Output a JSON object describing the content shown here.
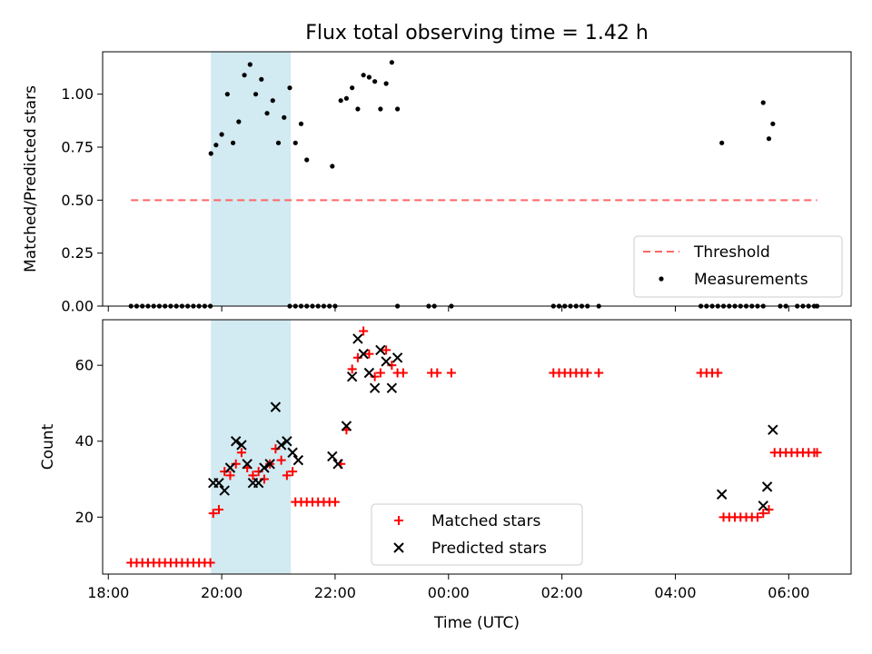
{
  "chart_data": {
    "title": "Flux total observing time = 1.42 h",
    "xlabel": "Time (UTC)",
    "x_unit": "hours since 00:00 UTC",
    "xlim": [
      -6.1,
      7.1
    ],
    "xticks": [
      {
        "value": -6,
        "label": "18:00"
      },
      {
        "value": -4,
        "label": "20:00"
      },
      {
        "value": -2,
        "label": "22:00"
      },
      {
        "value": 0,
        "label": "00:00"
      },
      {
        "value": 2,
        "label": "02:00"
      },
      {
        "value": 4,
        "label": "04:00"
      },
      {
        "value": 6,
        "label": "06:00"
      }
    ],
    "shaded_region": {
      "x": [
        -4.19,
        -2.78
      ],
      "color": "#add8e6"
    },
    "panels": [
      {
        "type": "scatter",
        "ylabel": "Matched/Predicted stars",
        "ylim": [
          0,
          1.2
        ],
        "yticks": [
          {
            "value": 0,
            "label": "0.00"
          },
          {
            "value": 0.25,
            "label": "0.25"
          },
          {
            "value": 0.5,
            "label": "0.50"
          },
          {
            "value": 0.75,
            "label": "0.75"
          },
          {
            "value": 1.0,
            "label": "1.00"
          }
        ],
        "legend": {
          "position": "lower-right",
          "threshold_label": "Threshold",
          "points_label": "Measurements"
        },
        "threshold": {
          "name": "Threshold",
          "value": 0.5,
          "x": [
            -5.6,
            6.5
          ],
          "color": "#ff6666"
        },
        "series": [
          {
            "name": "Measurements",
            "color": "#000000",
            "points": [
              [
                -5.6,
                0
              ],
              [
                -5.5,
                0
              ],
              [
                -5.4,
                0
              ],
              [
                -5.3,
                0
              ],
              [
                -5.2,
                0
              ],
              [
                -5.1,
                0
              ],
              [
                -5.0,
                0
              ],
              [
                -4.9,
                0
              ],
              [
                -4.8,
                0
              ],
              [
                -4.7,
                0
              ],
              [
                -4.6,
                0
              ],
              [
                -4.5,
                0
              ],
              [
                -4.4,
                0
              ],
              [
                -4.3,
                0
              ],
              [
                -4.2,
                0
              ],
              [
                -4.19,
                0.72
              ],
              [
                -4.1,
                0.76
              ],
              [
                -4.0,
                0.81
              ],
              [
                -3.9,
                1.0
              ],
              [
                -3.8,
                0.77
              ],
              [
                -3.7,
                0.87
              ],
              [
                -3.6,
                1.09
              ],
              [
                -3.5,
                1.14
              ],
              [
                -3.4,
                1.0
              ],
              [
                -3.3,
                1.07
              ],
              [
                -3.2,
                0.91
              ],
              [
                -3.1,
                0.97
              ],
              [
                -3.0,
                0.77
              ],
              [
                -2.9,
                0.89
              ],
              [
                -2.8,
                1.03
              ],
              [
                -2.7,
                0.77
              ],
              [
                -2.6,
                0.86
              ],
              [
                -2.5,
                0.69
              ],
              [
                -2.8,
                0
              ],
              [
                -2.7,
                0
              ],
              [
                -2.6,
                0
              ],
              [
                -2.5,
                0
              ],
              [
                -2.4,
                0
              ],
              [
                -2.3,
                0
              ],
              [
                -2.2,
                0
              ],
              [
                -2.1,
                0
              ],
              [
                -2.0,
                0
              ],
              [
                -2.05,
                0.66
              ],
              [
                -1.9,
                0.97
              ],
              [
                -1.8,
                0.98
              ],
              [
                -1.7,
                1.03
              ],
              [
                -1.6,
                0.93
              ],
              [
                -1.5,
                1.09
              ],
              [
                -1.4,
                1.08
              ],
              [
                -1.3,
                1.06
              ],
              [
                -1.2,
                0.93
              ],
              [
                -1.1,
                1.05
              ],
              [
                -1.0,
                1.15
              ],
              [
                -0.9,
                0.93
              ],
              [
                -0.9,
                0
              ],
              [
                -0.35,
                0
              ],
              [
                -0.25,
                0
              ],
              [
                0.05,
                0
              ],
              [
                1.85,
                0
              ],
              [
                1.95,
                0
              ],
              [
                2.05,
                0
              ],
              [
                2.15,
                0
              ],
              [
                2.25,
                0
              ],
              [
                2.35,
                0
              ],
              [
                2.45,
                0
              ],
              [
                2.65,
                0
              ],
              [
                4.45,
                0
              ],
              [
                4.55,
                0
              ],
              [
                4.65,
                0
              ],
              [
                4.75,
                0
              ],
              [
                4.85,
                0
              ],
              [
                4.95,
                0
              ],
              [
                5.05,
                0
              ],
              [
                5.15,
                0
              ],
              [
                5.25,
                0
              ],
              [
                5.35,
                0
              ],
              [
                5.45,
                0
              ],
              [
                5.55,
                0
              ],
              [
                4.82,
                0.77
              ],
              [
                5.55,
                0.96
              ],
              [
                5.65,
                0.79
              ],
              [
                5.72,
                0.86
              ],
              [
                5.85,
                0
              ],
              [
                5.95,
                0
              ],
              [
                6.15,
                0
              ],
              [
                6.25,
                0
              ],
              [
                6.35,
                0
              ],
              [
                6.45,
                0
              ],
              [
                6.5,
                0
              ]
            ]
          }
        ]
      },
      {
        "type": "scatter",
        "ylabel": "Count",
        "ylim": [
          5,
          72
        ],
        "yticks": [
          {
            "value": 20,
            "label": "20"
          },
          {
            "value": 40,
            "label": "40"
          },
          {
            "value": 60,
            "label": "60"
          }
        ],
        "legend": {
          "position": "lower-center"
        },
        "series": [
          {
            "name": "Matched stars",
            "marker": "+",
            "color": "#ff0000",
            "points": [
              [
                -5.6,
                8
              ],
              [
                -5.5,
                8
              ],
              [
                -5.4,
                8
              ],
              [
                -5.3,
                8
              ],
              [
                -5.2,
                8
              ],
              [
                -5.1,
                8
              ],
              [
                -5.0,
                8
              ],
              [
                -4.9,
                8
              ],
              [
                -4.8,
                8
              ],
              [
                -4.7,
                8
              ],
              [
                -4.6,
                8
              ],
              [
                -4.5,
                8
              ],
              [
                -4.4,
                8
              ],
              [
                -4.3,
                8
              ],
              [
                -4.2,
                8
              ],
              [
                -4.15,
                21
              ],
              [
                -4.05,
                22
              ],
              [
                -3.95,
                32
              ],
              [
                -3.85,
                31
              ],
              [
                -3.75,
                34
              ],
              [
                -3.65,
                37
              ],
              [
                -3.55,
                33
              ],
              [
                -3.45,
                31
              ],
              [
                -3.35,
                32
              ],
              [
                -3.25,
                30
              ],
              [
                -3.15,
                34
              ],
              [
                -3.05,
                38
              ],
              [
                -2.95,
                35
              ],
              [
                -2.85,
                31
              ],
              [
                -2.75,
                32
              ],
              [
                -2.7,
                24
              ],
              [
                -2.6,
                24
              ],
              [
                -2.5,
                24
              ],
              [
                -2.4,
                24
              ],
              [
                -2.3,
                24
              ],
              [
                -2.2,
                24
              ],
              [
                -2.1,
                24
              ],
              [
                -2.0,
                24
              ],
              [
                -1.9,
                34
              ],
              [
                -1.8,
                43
              ],
              [
                -1.7,
                59
              ],
              [
                -1.6,
                62
              ],
              [
                -1.5,
                69
              ],
              [
                -1.4,
                63
              ],
              [
                -1.3,
                57
              ],
              [
                -1.2,
                58
              ],
              [
                -1.1,
                64
              ],
              [
                -1.0,
                60
              ],
              [
                -0.9,
                58
              ],
              [
                -0.8,
                58
              ],
              [
                -0.3,
                58
              ],
              [
                -0.2,
                58
              ],
              [
                0.05,
                58
              ],
              [
                1.85,
                58
              ],
              [
                1.95,
                58
              ],
              [
                2.05,
                58
              ],
              [
                2.15,
                58
              ],
              [
                2.25,
                58
              ],
              [
                2.35,
                58
              ],
              [
                2.45,
                58
              ],
              [
                2.65,
                58
              ],
              [
                4.45,
                58
              ],
              [
                4.55,
                58
              ],
              [
                4.65,
                58
              ],
              [
                4.75,
                58
              ],
              [
                4.85,
                20
              ],
              [
                4.95,
                20
              ],
              [
                5.05,
                20
              ],
              [
                5.15,
                20
              ],
              [
                5.25,
                20
              ],
              [
                5.35,
                20
              ],
              [
                5.45,
                20
              ],
              [
                5.55,
                21
              ],
              [
                5.65,
                22
              ],
              [
                5.75,
                37
              ],
              [
                5.85,
                37
              ],
              [
                5.95,
                37
              ],
              [
                6.05,
                37
              ],
              [
                6.15,
                37
              ],
              [
                6.25,
                37
              ],
              [
                6.35,
                37
              ],
              [
                6.45,
                37
              ],
              [
                6.5,
                37
              ]
            ]
          },
          {
            "name": "Predicted stars",
            "marker": "x",
            "color": "#000000",
            "points": [
              [
                -4.15,
                29
              ],
              [
                -4.05,
                29
              ],
              [
                -3.95,
                27
              ],
              [
                -3.85,
                33
              ],
              [
                -3.75,
                40
              ],
              [
                -3.65,
                39
              ],
              [
                -3.55,
                34
              ],
              [
                -3.45,
                29
              ],
              [
                -3.35,
                29
              ],
              [
                -3.25,
                33
              ],
              [
                -3.15,
                34
              ],
              [
                -3.05,
                49
              ],
              [
                -2.95,
                39
              ],
              [
                -2.85,
                40
              ],
              [
                -2.75,
                37
              ],
              [
                -2.65,
                35
              ],
              [
                -2.05,
                36
              ],
              [
                -1.95,
                34
              ],
              [
                -1.8,
                44
              ],
              [
                -1.7,
                57
              ],
              [
                -1.6,
                67
              ],
              [
                -1.5,
                63
              ],
              [
                -1.4,
                58
              ],
              [
                -1.3,
                54
              ],
              [
                -1.2,
                64
              ],
              [
                -1.1,
                61
              ],
              [
                -1.0,
                54
              ],
              [
                -0.9,
                62
              ],
              [
                4.82,
                26
              ],
              [
                5.55,
                23
              ],
              [
                5.62,
                28
              ],
              [
                5.72,
                43
              ]
            ]
          }
        ]
      }
    ]
  }
}
